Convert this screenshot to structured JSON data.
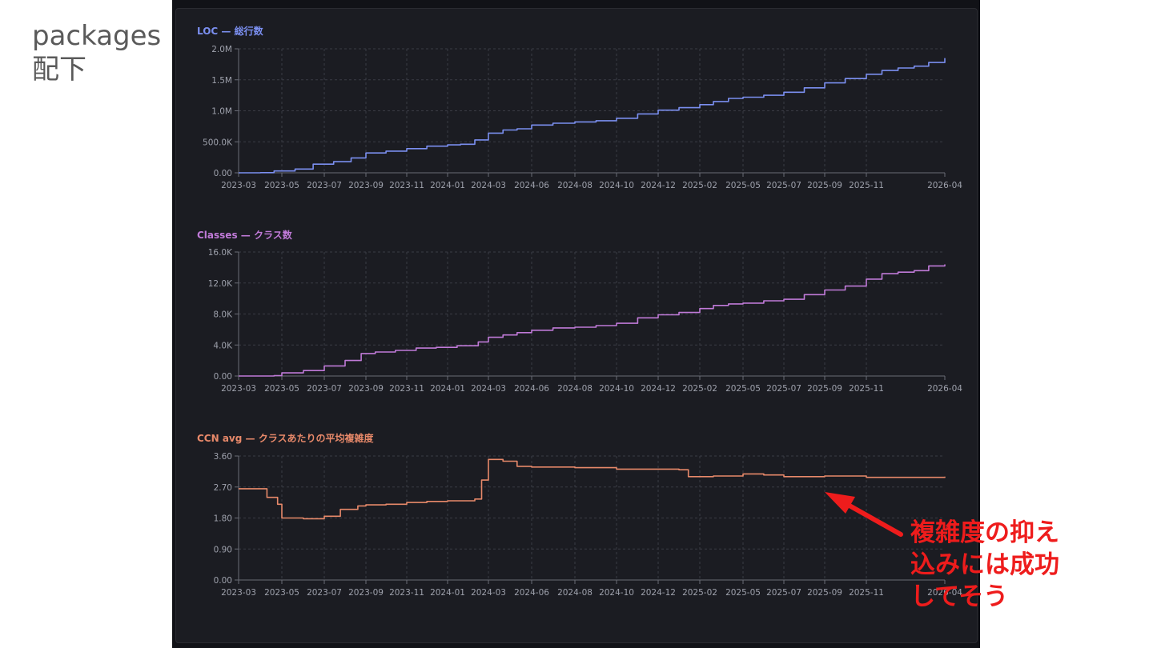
{
  "slide": {
    "title": "packages\n配下"
  },
  "annotation": {
    "text": "複雑度の抑え\n込みには成功\nしてそう",
    "color": "#ee1c1c"
  },
  "colors": {
    "panel_bg": "#1b1c22",
    "grid": "#3a3b44",
    "axis_text": "#9ea1ac"
  },
  "chart_data": [
    {
      "type": "line",
      "title": "LOC — 総行数",
      "color": "#7b8ff0",
      "x_ticks": [
        "2023-03",
        "2023-05",
        "2023-07",
        "2023-09",
        "2023-11",
        "2024-01",
        "2024-03",
        "2024-06",
        "2024-08",
        "2024-10",
        "2024-12",
        "2025-02",
        "2025-05",
        "2025-07",
        "2025-09",
        "2025-11",
        "2026-04"
      ],
      "y_ticks": [
        "0.00",
        "500.0K",
        "1.0M",
        "1.5M",
        "2.0M"
      ],
      "ylim": [
        0,
        2000000
      ],
      "grid": true,
      "series": [
        {
          "points": [
            [
              "2023-03-01",
              0
            ],
            [
              "2023-04-01",
              2000
            ],
            [
              "2023-04-20",
              30000
            ],
            [
              "2023-05-20",
              60000
            ],
            [
              "2023-06-15",
              140000
            ],
            [
              "2023-07-15",
              180000
            ],
            [
              "2023-08-10",
              240000
            ],
            [
              "2023-09-01",
              320000
            ],
            [
              "2023-10-01",
              350000
            ],
            [
              "2023-11-01",
              390000
            ],
            [
              "2023-12-01",
              430000
            ],
            [
              "2024-01-01",
              450000
            ],
            [
              "2024-01-20",
              460000
            ],
            [
              "2024-02-10",
              530000
            ],
            [
              "2024-03-01",
              640000
            ],
            [
              "2024-04-01",
              690000
            ],
            [
              "2024-05-01",
              710000
            ],
            [
              "2024-06-01",
              770000
            ],
            [
              "2024-07-01",
              800000
            ],
            [
              "2024-08-01",
              820000
            ],
            [
              "2024-09-01",
              840000
            ],
            [
              "2024-10-01",
              880000
            ],
            [
              "2024-11-01",
              950000
            ],
            [
              "2024-12-01",
              1010000
            ],
            [
              "2025-01-01",
              1050000
            ],
            [
              "2025-02-01",
              1100000
            ],
            [
              "2025-03-01",
              1150000
            ],
            [
              "2025-04-01",
              1200000
            ],
            [
              "2025-05-01",
              1220000
            ],
            [
              "2025-06-01",
              1250000
            ],
            [
              "2025-07-01",
              1300000
            ],
            [
              "2025-08-01",
              1370000
            ],
            [
              "2025-09-01",
              1450000
            ],
            [
              "2025-10-01",
              1520000
            ],
            [
              "2025-11-01",
              1590000
            ],
            [
              "2025-12-01",
              1650000
            ],
            [
              "2026-01-01",
              1690000
            ],
            [
              "2026-02-01",
              1720000
            ],
            [
              "2026-03-01",
              1780000
            ],
            [
              "2026-04-01",
              1850000
            ]
          ]
        }
      ]
    },
    {
      "type": "line",
      "title": "Classes — クラス数",
      "color": "#c07ad8",
      "x_ticks": [
        "2023-03",
        "2023-05",
        "2023-07",
        "2023-09",
        "2023-11",
        "2024-01",
        "2024-03",
        "2024-06",
        "2024-08",
        "2024-10",
        "2024-12",
        "2025-02",
        "2025-05",
        "2025-07",
        "2025-09",
        "2025-11",
        "2026-04"
      ],
      "y_ticks": [
        "0.00",
        "4.0K",
        "8.0K",
        "12.0K",
        "16.0K"
      ],
      "ylim": [
        0,
        16000
      ],
      "grid": true,
      "series": [
        {
          "points": [
            [
              "2023-03-01",
              0
            ],
            [
              "2023-04-20",
              50
            ],
            [
              "2023-05-01",
              400
            ],
            [
              "2023-06-01",
              700
            ],
            [
              "2023-07-01",
              1300
            ],
            [
              "2023-08-01",
              2000
            ],
            [
              "2023-08-25",
              2900
            ],
            [
              "2023-09-15",
              3100
            ],
            [
              "2023-10-15",
              3300
            ],
            [
              "2023-11-15",
              3600
            ],
            [
              "2023-12-15",
              3700
            ],
            [
              "2024-01-15",
              3900
            ],
            [
              "2024-02-15",
              4400
            ],
            [
              "2024-03-01",
              5000
            ],
            [
              "2024-04-01",
              5300
            ],
            [
              "2024-05-01",
              5600
            ],
            [
              "2024-06-01",
              5900
            ],
            [
              "2024-07-01",
              6200
            ],
            [
              "2024-08-01",
              6300
            ],
            [
              "2024-09-01",
              6500
            ],
            [
              "2024-10-01",
              6800
            ],
            [
              "2024-11-01",
              7500
            ],
            [
              "2024-12-01",
              7900
            ],
            [
              "2025-01-01",
              8200
            ],
            [
              "2025-02-01",
              8700
            ],
            [
              "2025-03-01",
              9100
            ],
            [
              "2025-04-01",
              9300
            ],
            [
              "2025-05-01",
              9400
            ],
            [
              "2025-06-01",
              9700
            ],
            [
              "2025-07-01",
              9900
            ],
            [
              "2025-08-01",
              10500
            ],
            [
              "2025-09-01",
              11100
            ],
            [
              "2025-10-01",
              11600
            ],
            [
              "2025-11-01",
              12500
            ],
            [
              "2025-12-01",
              13200
            ],
            [
              "2026-01-01",
              13400
            ],
            [
              "2026-02-01",
              13600
            ],
            [
              "2026-03-01",
              14200
            ],
            [
              "2026-04-01",
              14400
            ]
          ]
        }
      ]
    },
    {
      "type": "line",
      "title": "CCN avg — クラスあたりの平均複雑度",
      "color": "#e8896a",
      "x_ticks": [
        "2023-03",
        "2023-05",
        "2023-07",
        "2023-09",
        "2023-11",
        "2024-01",
        "2024-03",
        "2024-06",
        "2024-08",
        "2024-10",
        "2024-12",
        "2025-02",
        "2025-05",
        "2025-07",
        "2025-09",
        "2025-11",
        "2026-04"
      ],
      "y_ticks": [
        "0.00",
        "0.90",
        "1.80",
        "2.70",
        "3.60"
      ],
      "ylim": [
        0,
        3.6
      ],
      "grid": true,
      "series": [
        {
          "points": [
            [
              "2023-03-01",
              2.65
            ],
            [
              "2023-04-01",
              2.65
            ],
            [
              "2023-04-10",
              2.4
            ],
            [
              "2023-04-25",
              2.2
            ],
            [
              "2023-05-01",
              1.8
            ],
            [
              "2023-06-01",
              1.78
            ],
            [
              "2023-07-01",
              1.85
            ],
            [
              "2023-07-25",
              2.05
            ],
            [
              "2023-08-20",
              2.15
            ],
            [
              "2023-09-01",
              2.18
            ],
            [
              "2023-10-01",
              2.2
            ],
            [
              "2023-11-01",
              2.25
            ],
            [
              "2023-12-01",
              2.28
            ],
            [
              "2024-01-01",
              2.3
            ],
            [
              "2024-02-10",
              2.35
            ],
            [
              "2024-02-20",
              2.9
            ],
            [
              "2024-03-01",
              3.5
            ],
            [
              "2024-04-01",
              3.45
            ],
            [
              "2024-05-01",
              3.3
            ],
            [
              "2024-06-01",
              3.28
            ],
            [
              "2024-08-01",
              3.26
            ],
            [
              "2024-10-01",
              3.22
            ],
            [
              "2024-12-01",
              3.22
            ],
            [
              "2025-01-01",
              3.2
            ],
            [
              "2025-01-15",
              3.0
            ],
            [
              "2025-03-01",
              3.02
            ],
            [
              "2025-05-01",
              3.08
            ],
            [
              "2025-06-01",
              3.05
            ],
            [
              "2025-07-01",
              3.0
            ],
            [
              "2025-09-01",
              3.02
            ],
            [
              "2025-11-01",
              2.98
            ],
            [
              "2026-01-01",
              2.98
            ],
            [
              "2026-04-01",
              3.0
            ]
          ]
        }
      ]
    }
  ]
}
